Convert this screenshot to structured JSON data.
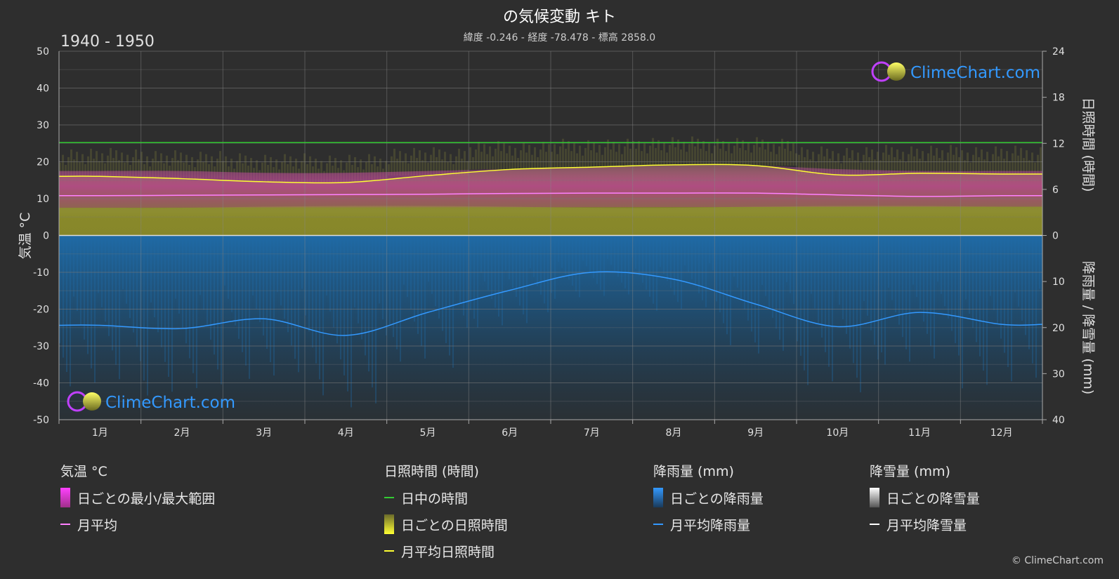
{
  "title": "の気候変動 キト",
  "subtitle": "緯度 -0.246 - 経度 -78.478 - 標高 2858.0",
  "period": "1940 - 1950",
  "watermark": "ClimeChart.com",
  "copyright": "© ClimeChart.com",
  "colors": {
    "background": "#2e2e2e",
    "grid": "#5a5a5a",
    "temp_range": "#c0409a",
    "temp_avg": "#ff80ff",
    "daylight": "#33cc33",
    "sunshine_fill": "#8a8a2a",
    "sunshine_avg": "#ffff33",
    "rain_fill": "#1f6aa5",
    "rain_avg": "#3399ff",
    "snow_avg": "#ffffff",
    "brand": "#3399ff"
  },
  "chart_data": {
    "type": "area",
    "categories": [
      "1月",
      "2月",
      "3月",
      "4月",
      "5月",
      "6月",
      "7月",
      "8月",
      "9月",
      "10月",
      "11月",
      "12月"
    ],
    "axes": {
      "y_left": {
        "label": "気温 °C",
        "range": [
          -50,
          50
        ],
        "ticks": [
          "50",
          "40",
          "30",
          "20",
          "10",
          "0",
          "-10",
          "-20",
          "-30",
          "-40",
          "-50"
        ]
      },
      "y_right_top": {
        "label": "日照時間 (時間)",
        "range": [
          0,
          24
        ],
        "ticks": [
          "24",
          "18",
          "12",
          "6",
          "0"
        ]
      },
      "y_right_bottom": {
        "label": "降雨量 / 降雪量 (mm)",
        "range": [
          0,
          40
        ],
        "ticks": [
          "10",
          "20",
          "30",
          "40"
        ]
      }
    },
    "grid": true,
    "series": [
      {
        "name": "日ごとの最小/最大範囲",
        "min": [
          7.5,
          7.5,
          7.8,
          8.0,
          8.0,
          7.8,
          7.5,
          7.5,
          7.8,
          8.0,
          8.0,
          7.8
        ],
        "max": [
          17.5,
          17.5,
          17.0,
          17.0,
          17.5,
          18.0,
          18.5,
          19.0,
          19.0,
          18.0,
          17.5,
          17.5
        ]
      },
      {
        "name": "月平均",
        "values": [
          10.8,
          10.9,
          11.0,
          11.1,
          11.2,
          11.4,
          11.5,
          11.5,
          11.5,
          11.0,
          10.6,
          10.8
        ]
      },
      {
        "name": "日中の時間",
        "values": [
          12.1,
          12.1,
          12.1,
          12.1,
          12.1,
          12.1,
          12.1,
          12.1,
          12.1,
          12.1,
          12.1,
          12.1
        ]
      },
      {
        "name": "月平均日照時間",
        "values": [
          7.7,
          7.4,
          7.0,
          6.9,
          7.8,
          8.6,
          8.9,
          9.2,
          9.1,
          7.9,
          8.1,
          8.0
        ]
      },
      {
        "name": "月平均降雨量",
        "values": [
          19.5,
          20.2,
          18.1,
          21.7,
          16.7,
          11.9,
          8.0,
          9.5,
          14.9,
          19.8,
          16.7,
          19.3
        ]
      },
      {
        "name": "月平均降雪量",
        "values": [
          0,
          0,
          0,
          0,
          0,
          0,
          0,
          0,
          0,
          0,
          0,
          0
        ]
      }
    ]
  },
  "legend": {
    "temp": {
      "header": "気温 °C",
      "items": [
        "日ごとの最小/最大範囲",
        "月平均"
      ]
    },
    "sun": {
      "header": "日照時間 (時間)",
      "items": [
        "日中の時間",
        "日ごとの日照時間",
        "月平均日照時間"
      ]
    },
    "rain": {
      "header": "降雨量 (mm)",
      "items": [
        "日ごとの降雨量",
        "月平均降雨量"
      ]
    },
    "snow": {
      "header": "降雪量 (mm)",
      "items": [
        "日ごとの降雪量",
        "月平均降雪量"
      ]
    }
  }
}
